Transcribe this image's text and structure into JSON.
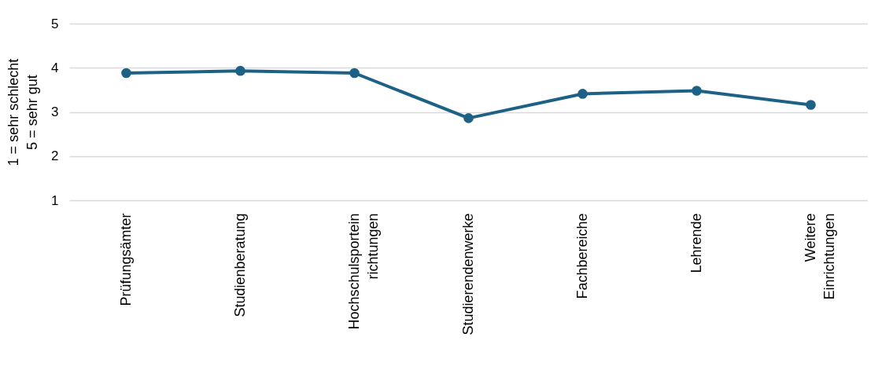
{
  "chart_data": {
    "type": "line",
    "ylabel": "1 = sehr schlecht\n5 = sehr gut",
    "categories": [
      "Prüfungsämter",
      "Studienberatung",
      "Hochschulsportein\nrichtungen",
      "Studierendenwerke",
      "Fachbereiche",
      "Lehrende",
      "Weitere\nEinrichtungen"
    ],
    "series": [
      {
        "color": "#1d6186",
        "values": [
          3.88,
          3.93,
          3.88,
          2.86,
          3.41,
          3.48,
          3.16
        ]
      }
    ],
    "ylim": [
      1,
      5
    ],
    "yticks": [
      1,
      2,
      3,
      4,
      5
    ],
    "grid": "y",
    "marker": "circle",
    "line_style": "solid",
    "legend": false
  }
}
